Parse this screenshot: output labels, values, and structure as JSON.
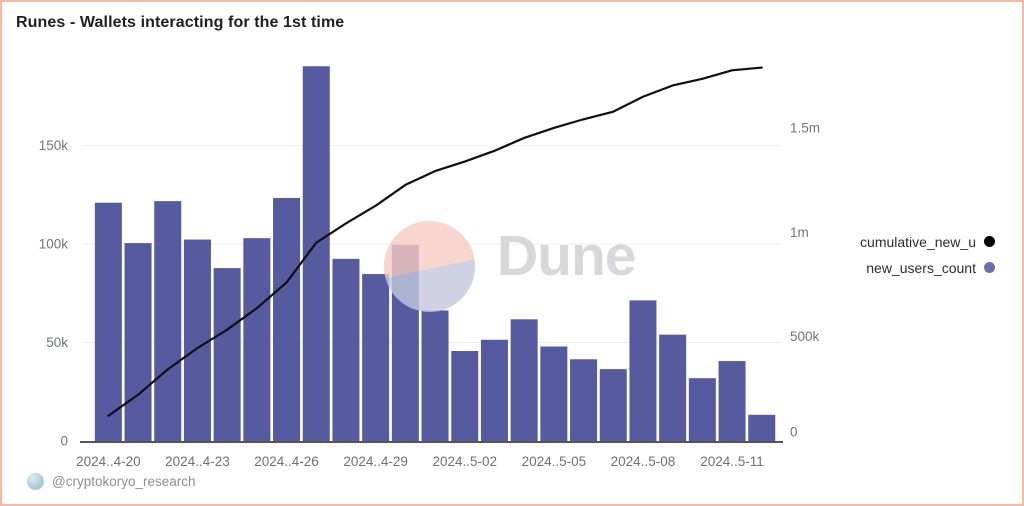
{
  "title": "Runes - Wallets interacting for the 1st time",
  "watermark": {
    "brand": "Dune"
  },
  "footer": {
    "handle": "@cryptokoryo_research"
  },
  "legend": [
    {
      "label": "cumulative_new_u",
      "color": "#000000"
    },
    {
      "label": "new_users_count",
      "color": "#6a6eb4"
    }
  ],
  "colors": {
    "bar": "#565a9f",
    "line": "#101010",
    "grid": "#efefef",
    "axis_line": "#54555c",
    "axis_text": "#71737d",
    "border": "#fbb8a5",
    "watermark_pink": "#f7cbc1",
    "watermark_lavender": "#c5c8de"
  },
  "chart_data": {
    "type": "bar",
    "title": "Runes - Wallets interacting for the 1st time",
    "categories": [
      "2024-04-20",
      "2024-04-21",
      "2024-04-22",
      "2024-04-23",
      "2024-04-24",
      "2024-04-25",
      "2024-04-26",
      "2024-04-27",
      "2024-04-28",
      "2024-04-29",
      "2024-04-30",
      "2024-05-01",
      "2024-05-02",
      "2024-05-03",
      "2024-05-04",
      "2024-05-05",
      "2024-05-06",
      "2024-05-07",
      "2024-05-08",
      "2024-05-09",
      "2024-05-10",
      "2024-05-11",
      "2024-05-12"
    ],
    "series": [
      {
        "name": "new_users_count",
        "type": "bar",
        "axis": "left",
        "values": [
          121000,
          100500,
          121800,
          102300,
          87800,
          103000,
          123400,
          190300,
          92500,
          84800,
          99600,
          66300,
          45700,
          51400,
          61800,
          48000,
          41500,
          36500,
          71400,
          54000,
          31900,
          40600,
          13300
        ]
      },
      {
        "name": "cumulative_new_users",
        "type": "line",
        "axis": "right",
        "values": [
          121000,
          221500,
          343300,
          445600,
          533400,
          636400,
          759800,
          950100,
          1042600,
          1127400,
          1227000,
          1293300,
          1339000,
          1390400,
          1452200,
          1500200,
          1541700,
          1578200,
          1649600,
          1703600,
          1735500,
          1776100,
          1789400
        ]
      }
    ],
    "x_ticks": [
      {
        "index": 0,
        "label": "2024..4-20"
      },
      {
        "index": 3,
        "label": "2024..4-23"
      },
      {
        "index": 6,
        "label": "2024..4-26"
      },
      {
        "index": 9,
        "label": "2024..4-29"
      },
      {
        "index": 12,
        "label": "2024..5-02"
      },
      {
        "index": 15,
        "label": "2024..5-05"
      },
      {
        "index": 18,
        "label": "2024..5-08"
      },
      {
        "index": 21,
        "label": "2024..5-11"
      }
    ],
    "left_axis": {
      "max": 195000,
      "ticks": [
        {
          "label": "0",
          "value": 0
        },
        {
          "label": "50k",
          "value": 50000
        },
        {
          "label": "100k",
          "value": 100000
        },
        {
          "label": "150k",
          "value": 150000
        }
      ]
    },
    "right_axis": {
      "max": 1840000,
      "ticks": [
        {
          "label": "0",
          "value": 0
        },
        {
          "label": "500k",
          "value": 500000
        },
        {
          "label": "1m",
          "value": 1000000
        },
        {
          "label": "1.5m",
          "value": 1500000
        }
      ]
    },
    "grid": "horizontal-only",
    "legend_position": "right"
  }
}
